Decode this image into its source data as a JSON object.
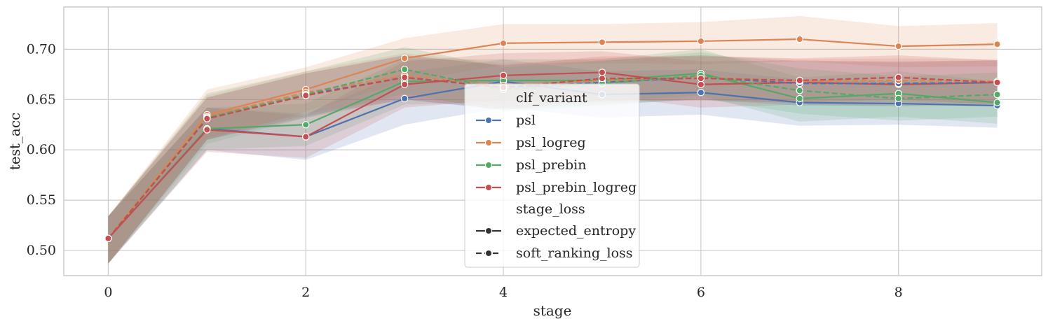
{
  "chart_data": {
    "type": "line",
    "xlabel": "stage",
    "ylabel": "test_acc",
    "xlim": [
      -0.45,
      9.45
    ],
    "ylim": [
      0.475,
      0.742
    ],
    "xticks": [
      0,
      2,
      4,
      6,
      8
    ],
    "yticks": [
      0.5,
      0.55,
      0.6,
      0.65,
      0.7
    ],
    "xtick_labels": [
      "0",
      "2",
      "4",
      "6",
      "8"
    ],
    "ytick_labels": [
      "0.50",
      "0.55",
      "0.60",
      "0.65",
      "0.70"
    ],
    "grid": true,
    "legend": {
      "hue_title": "clf_variant",
      "hue_entries": [
        {
          "label": "psl",
          "color": "#4c72b0"
        },
        {
          "label": "psl_logreg",
          "color": "#dd8452"
        },
        {
          "label": "psl_prebin",
          "color": "#55a868"
        },
        {
          "label": "psl_prebin_logreg",
          "color": "#c44e52"
        }
      ],
      "style_title": "stage_loss",
      "style_entries": [
        {
          "label": "expected_entropy",
          "dash": "solid"
        },
        {
          "label": "soft_ranking_loss",
          "dash": "dashed"
        }
      ],
      "placement": "center"
    },
    "series": [
      {
        "hue": "psl",
        "style": "expected_entropy",
        "color": "#4c72b0",
        "dash": "solid",
        "x": [
          0,
          1,
          2,
          3,
          4,
          5,
          6,
          7,
          8,
          9
        ],
        "y": [
          0.512,
          0.621,
          0.613,
          0.651,
          0.668,
          0.655,
          0.657,
          0.647,
          0.646,
          0.644
        ],
        "lower": [
          0.487,
          0.6,
          0.59,
          0.625,
          0.642,
          0.632,
          0.635,
          0.624,
          0.625,
          0.622
        ],
        "upper": [
          0.534,
          0.642,
          0.636,
          0.677,
          0.69,
          0.678,
          0.68,
          0.67,
          0.668,
          0.666
        ]
      },
      {
        "hue": "psl_logreg",
        "style": "expected_entropy",
        "color": "#dd8452",
        "dash": "solid",
        "x": [
          0,
          1,
          2,
          3,
          4,
          5,
          6,
          7,
          8,
          9
        ],
        "y": [
          0.512,
          0.635,
          0.66,
          0.691,
          0.706,
          0.707,
          0.708,
          0.71,
          0.703,
          0.705
        ],
        "lower": [
          0.487,
          0.61,
          0.638,
          0.668,
          0.684,
          0.686,
          0.685,
          0.688,
          0.682,
          0.683
        ],
        "upper": [
          0.534,
          0.66,
          0.682,
          0.711,
          0.725,
          0.725,
          0.727,
          0.733,
          0.723,
          0.726
        ]
      },
      {
        "hue": "psl_prebin",
        "style": "expected_entropy",
        "color": "#55a868",
        "dash": "solid",
        "x": [
          0,
          1,
          2,
          3,
          4,
          5,
          6,
          7,
          8,
          9
        ],
        "y": [
          0.512,
          0.621,
          0.625,
          0.668,
          0.669,
          0.669,
          0.676,
          0.651,
          0.656,
          0.647
        ],
        "lower": [
          0.487,
          0.6,
          0.604,
          0.645,
          0.648,
          0.648,
          0.654,
          0.628,
          0.633,
          0.626
        ],
        "upper": [
          0.534,
          0.642,
          0.646,
          0.69,
          0.69,
          0.69,
          0.7,
          0.672,
          0.678,
          0.668
        ]
      },
      {
        "hue": "psl_prebin_logreg",
        "style": "expected_entropy",
        "color": "#c44e52",
        "dash": "solid",
        "x": [
          0,
          1,
          2,
          3,
          4,
          5,
          6,
          7,
          8,
          9
        ],
        "y": [
          0.512,
          0.62,
          0.613,
          0.665,
          0.674,
          0.677,
          0.665,
          0.667,
          0.665,
          0.667
        ],
        "lower": [
          0.487,
          0.598,
          0.592,
          0.642,
          0.65,
          0.654,
          0.642,
          0.645,
          0.643,
          0.645
        ],
        "upper": [
          0.534,
          0.642,
          0.634,
          0.688,
          0.696,
          0.698,
          0.688,
          0.689,
          0.687,
          0.689
        ]
      },
      {
        "hue": "psl",
        "style": "soft_ranking_loss",
        "color": "#4c72b0",
        "dash": "dashed",
        "x": [
          0,
          1,
          2,
          3,
          4,
          5,
          6,
          7,
          8,
          9
        ],
        "y": [
          0.512,
          0.631,
          0.655,
          0.672,
          0.662,
          0.667,
          0.672,
          0.666,
          0.666,
          0.667
        ],
        "lower": [
          0.487,
          0.61,
          0.634,
          0.65,
          0.64,
          0.645,
          0.65,
          0.644,
          0.644,
          0.645
        ],
        "upper": [
          0.534,
          0.652,
          0.676,
          0.694,
          0.684,
          0.689,
          0.694,
          0.688,
          0.688,
          0.689
        ]
      },
      {
        "hue": "psl_logreg",
        "style": "soft_ranking_loss",
        "color": "#dd8452",
        "dash": "dashed",
        "x": [
          0,
          1,
          2,
          3,
          4,
          5,
          6,
          7,
          8,
          9
        ],
        "y": [
          0.512,
          0.633,
          0.657,
          0.674,
          0.664,
          0.669,
          0.672,
          0.668,
          0.669,
          0.668
        ],
        "lower": [
          0.487,
          0.612,
          0.636,
          0.652,
          0.642,
          0.647,
          0.65,
          0.646,
          0.647,
          0.646
        ],
        "upper": [
          0.534,
          0.654,
          0.678,
          0.696,
          0.686,
          0.691,
          0.694,
          0.69,
          0.691,
          0.69
        ]
      },
      {
        "hue": "psl_prebin",
        "style": "soft_ranking_loss",
        "color": "#55a868",
        "dash": "dashed",
        "x": [
          0,
          1,
          2,
          3,
          4,
          5,
          6,
          7,
          8,
          9
        ],
        "y": [
          0.512,
          0.632,
          0.655,
          0.68,
          0.66,
          0.666,
          0.674,
          0.659,
          0.651,
          0.655
        ],
        "lower": [
          0.487,
          0.606,
          0.632,
          0.656,
          0.638,
          0.644,
          0.651,
          0.636,
          0.629,
          0.633
        ],
        "upper": [
          0.534,
          0.656,
          0.678,
          0.702,
          0.682,
          0.688,
          0.697,
          0.681,
          0.673,
          0.677
        ]
      },
      {
        "hue": "psl_prebin_logreg",
        "style": "soft_ranking_loss",
        "color": "#c44e52",
        "dash": "dashed",
        "x": [
          0,
          1,
          2,
          3,
          4,
          5,
          6,
          7,
          8,
          9
        ],
        "y": [
          0.512,
          0.631,
          0.654,
          0.672,
          0.662,
          0.671,
          0.671,
          0.669,
          0.672,
          0.667
        ],
        "lower": [
          0.487,
          0.61,
          0.632,
          0.65,
          0.64,
          0.649,
          0.649,
          0.647,
          0.65,
          0.645
        ],
        "upper": [
          0.534,
          0.652,
          0.676,
          0.694,
          0.684,
          0.693,
          0.693,
          0.691,
          0.694,
          0.689
        ]
      }
    ]
  }
}
